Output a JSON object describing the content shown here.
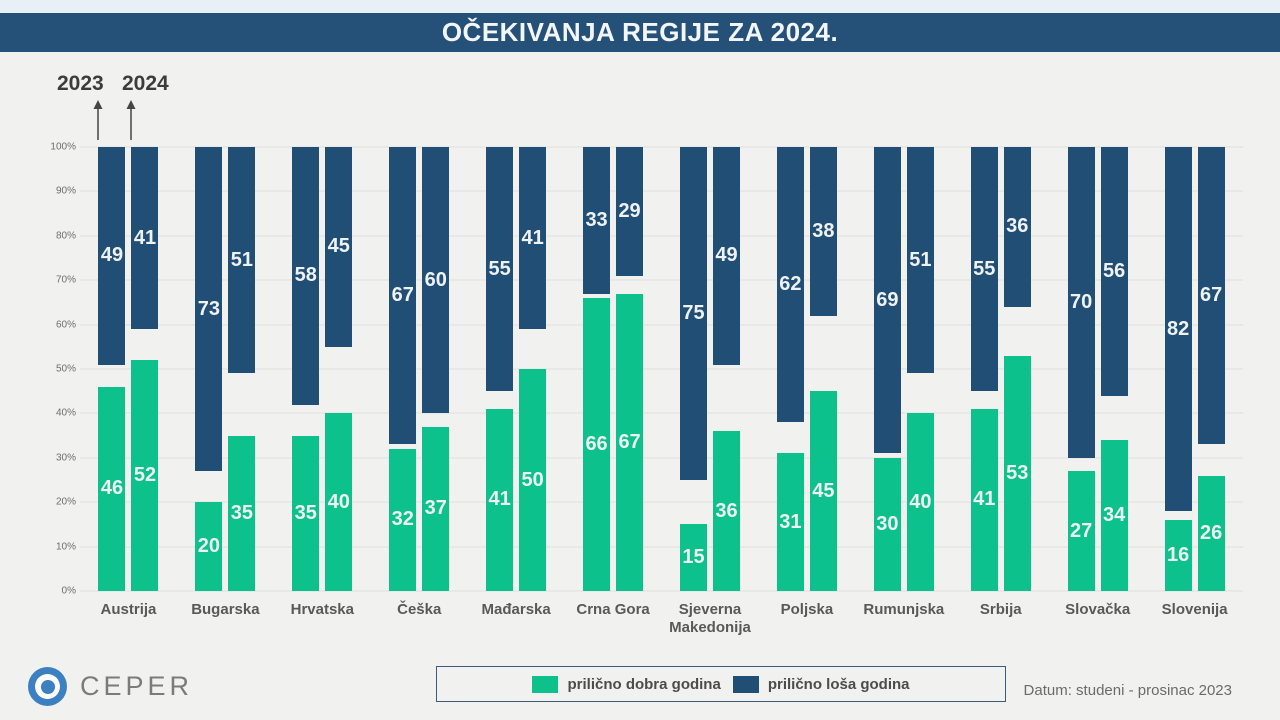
{
  "header": {
    "title": "OČEKIVANJA REGIJE ZA 2024."
  },
  "annotations": {
    "year_left": "2023",
    "year_right": "2024"
  },
  "chart_data": {
    "type": "bar",
    "subtype": "paired-stacked-columns, good anchored at 0%, bad anchored at 100%",
    "title": "OČEKIVANJA REGIJE ZA 2024.",
    "categories": [
      "Austrija",
      "Bugarska",
      "Hrvatska",
      "Češka",
      "Mađarska",
      "Crna Gora",
      "Sjeverna Makedonija",
      "Poljska",
      "Rumunjska",
      "Srbija",
      "Slovačka",
      "Slovenija"
    ],
    "series": [
      {
        "year": "2023",
        "good": [
          46,
          20,
          35,
          32,
          41,
          66,
          15,
          31,
          30,
          41,
          27,
          16
        ],
        "bad": [
          49,
          73,
          58,
          67,
          55,
          33,
          75,
          62,
          69,
          55,
          70,
          82
        ]
      },
      {
        "year": "2024",
        "good": [
          52,
          35,
          40,
          37,
          50,
          67,
          36,
          45,
          40,
          53,
          34,
          26
        ],
        "bad": [
          41,
          51,
          45,
          60,
          41,
          29,
          49,
          38,
          51,
          36,
          56,
          67
        ]
      }
    ],
    "ylim": [
      0,
      100
    ],
    "yticks": [
      "100%",
      "90%",
      "80%",
      "70%",
      "60%",
      "50%",
      "40%",
      "30%",
      "20%",
      "10%",
      "0%"
    ],
    "grid": "horizontal, light gray",
    "legend_position": "bottom-center",
    "legend": [
      {
        "label": "prilično dobra godina",
        "color": "#0dc18c"
      },
      {
        "label": "prilično loša godina",
        "color": "#214e74"
      }
    ]
  },
  "footer": {
    "logo_text": "CEPER",
    "date_text": "Datum: studeni - prosinac 2023"
  },
  "colors": {
    "background": "#f1f1ef",
    "header_bg": "#255078",
    "good_bar": "#0dc18c",
    "bad_bar": "#214e74",
    "logo_blue": "#3d80c2"
  }
}
